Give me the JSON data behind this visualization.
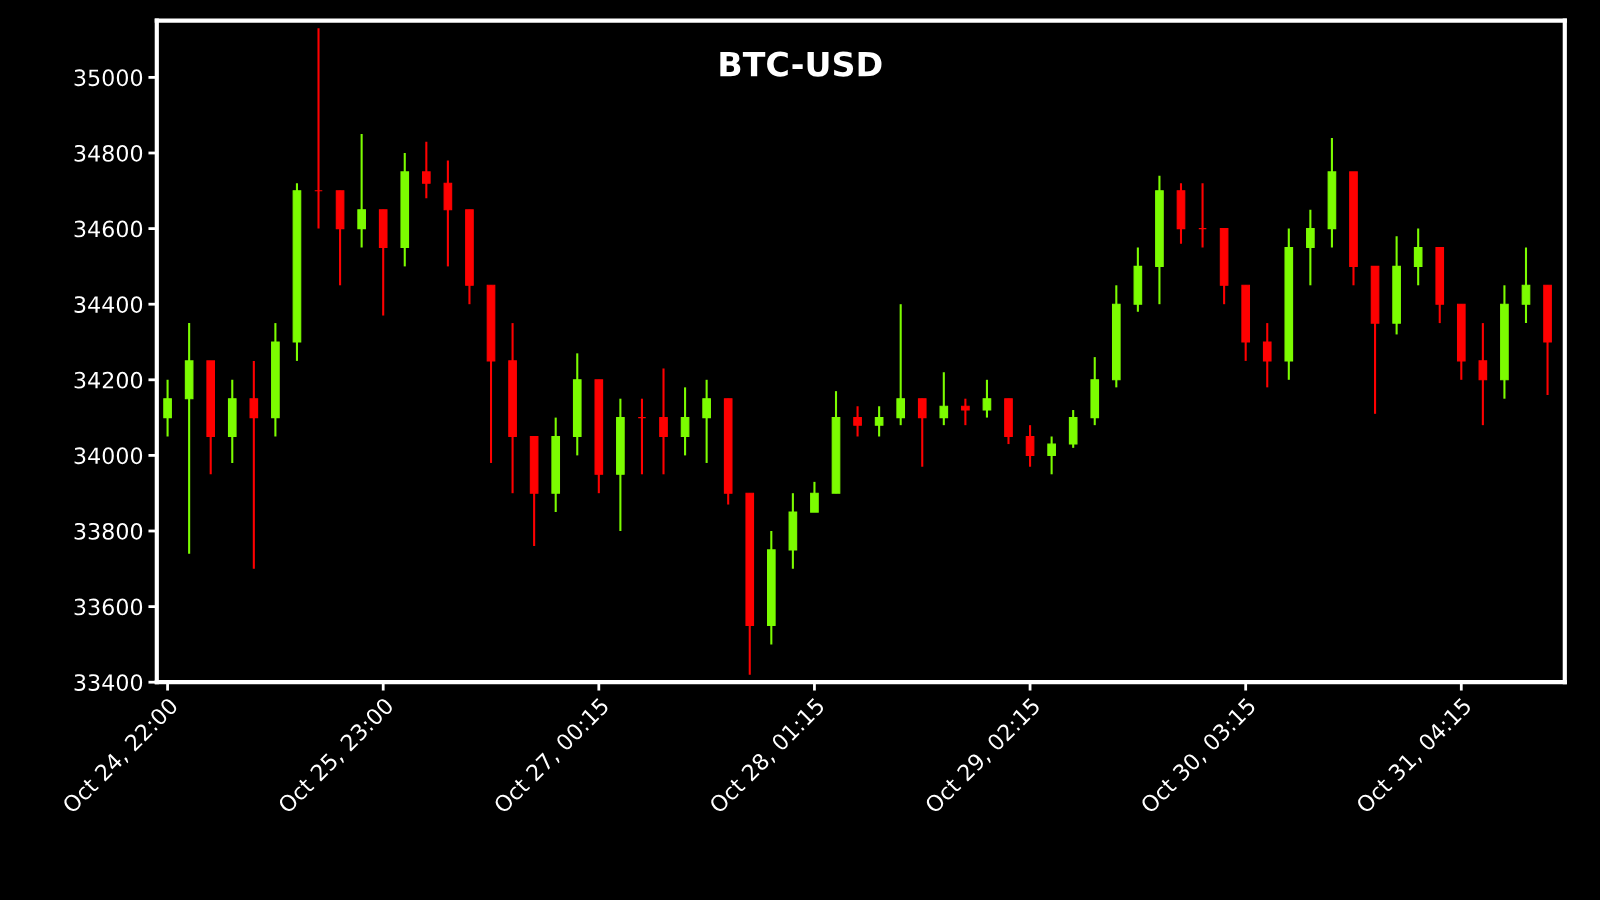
{
  "chart_data": {
    "type": "candlestick",
    "title": "BTC-USD",
    "categories": [
      "Oct 24, 22:00",
      null,
      null,
      null,
      null,
      null,
      null,
      null,
      null,
      null,
      "Oct 25, 23:00",
      null,
      null,
      null,
      null,
      null,
      null,
      null,
      null,
      null,
      "Oct 27, 00:15",
      null,
      null,
      null,
      null,
      null,
      null,
      null,
      null,
      null,
      "Oct 28, 01:15",
      null,
      null,
      null,
      null,
      null,
      null,
      null,
      null,
      null,
      "Oct 29, 02:15",
      null,
      null,
      null,
      null,
      null,
      null,
      null,
      null,
      null,
      "Oct 30, 03:15",
      null,
      null,
      null,
      null,
      null,
      null,
      null,
      null,
      null,
      "Oct 31, 04:15",
      null,
      null,
      null,
      null
    ],
    "ohlc": [
      [
        34100,
        34200,
        34050,
        34150
      ],
      [
        34150,
        34350,
        33740,
        34250
      ],
      [
        34250,
        34250,
        33950,
        34050
      ],
      [
        34050,
        34200,
        33980,
        34150
      ],
      [
        34150,
        34250,
        33700,
        34100
      ],
      [
        34100,
        34350,
        34050,
        34300
      ],
      [
        34300,
        34720,
        34250,
        34700
      ],
      [
        34700,
        35130,
        34600,
        34700
      ],
      [
        34700,
        34700,
        34450,
        34600
      ],
      [
        34600,
        34850,
        34550,
        34650
      ],
      [
        34650,
        34650,
        34370,
        34550
      ],
      [
        34550,
        34800,
        34500,
        34750
      ],
      [
        34750,
        34830,
        34680,
        34720
      ],
      [
        34720,
        34780,
        34500,
        34650
      ],
      [
        34650,
        34650,
        34400,
        34450
      ],
      [
        34450,
        34450,
        33980,
        34250
      ],
      [
        34250,
        34350,
        33900,
        34050
      ],
      [
        34050,
        34050,
        33760,
        33900
      ],
      [
        33900,
        34100,
        33850,
        34050
      ],
      [
        34050,
        34270,
        34000,
        34200
      ],
      [
        34200,
        34200,
        33900,
        33950
      ],
      [
        33950,
        34150,
        33800,
        34100
      ],
      [
        34100,
        34150,
        33950,
        34100
      ],
      [
        34100,
        34230,
        33950,
        34050
      ],
      [
        34050,
        34180,
        34000,
        34100
      ],
      [
        34100,
        34200,
        33980,
        34150
      ],
      [
        34150,
        34150,
        33870,
        33900
      ],
      [
        33900,
        33900,
        33420,
        33550
      ],
      [
        33550,
        33800,
        33500,
        33750
      ],
      [
        33750,
        33900,
        33700,
        33850
      ],
      [
        33850,
        33930,
        33850,
        33900
      ],
      [
        33900,
        34170,
        33900,
        34100
      ],
      [
        34100,
        34130,
        34050,
        34080
      ],
      [
        34080,
        34130,
        34050,
        34100
      ],
      [
        34100,
        34400,
        34080,
        34150
      ],
      [
        34150,
        34150,
        33970,
        34100
      ],
      [
        34100,
        34220,
        34080,
        34130
      ],
      [
        34130,
        34150,
        34080,
        34120
      ],
      [
        34120,
        34200,
        34100,
        34150
      ],
      [
        34150,
        34150,
        34030,
        34050
      ],
      [
        34050,
        34080,
        33970,
        34000
      ],
      [
        34000,
        34050,
        33950,
        34030
      ],
      [
        34030,
        34120,
        34020,
        34100
      ],
      [
        34100,
        34260,
        34080,
        34200
      ],
      [
        34200,
        34450,
        34180,
        34400
      ],
      [
        34400,
        34550,
        34380,
        34500
      ],
      [
        34500,
        34740,
        34400,
        34700
      ],
      [
        34700,
        34720,
        34560,
        34600
      ],
      [
        34600,
        34720,
        34550,
        34600
      ],
      [
        34600,
        34600,
        34400,
        34450
      ],
      [
        34450,
        34450,
        34250,
        34300
      ],
      [
        34300,
        34350,
        34180,
        34250
      ],
      [
        34250,
        34600,
        34200,
        34550
      ],
      [
        34550,
        34650,
        34450,
        34600
      ],
      [
        34600,
        34840,
        34550,
        34750
      ],
      [
        34750,
        34750,
        34450,
        34500
      ],
      [
        34500,
        34500,
        34110,
        34350
      ],
      [
        34350,
        34580,
        34320,
        34500
      ],
      [
        34500,
        34600,
        34450,
        34550
      ],
      [
        34550,
        34550,
        34350,
        34400
      ],
      [
        34400,
        34400,
        34200,
        34250
      ],
      [
        34250,
        34350,
        34080,
        34200
      ],
      [
        34200,
        34450,
        34150,
        34400
      ],
      [
        34400,
        34550,
        34350,
        34450
      ],
      [
        34450,
        34450,
        34160,
        34300
      ]
    ],
    "colors": [
      "#7cfc00",
      "#7cfc00",
      "#ff0000",
      "#7cfc00",
      "#ff0000",
      "#7cfc00",
      "#7cfc00",
      "#ff0000",
      "#ff0000",
      "#7cfc00",
      "#ff0000",
      "#7cfc00",
      "#ff0000",
      "#ff0000",
      "#ff0000",
      "#ff0000",
      "#ff0000",
      "#ff0000",
      "#7cfc00",
      "#7cfc00",
      "#ff0000",
      "#7cfc00",
      "#ff0000",
      "#ff0000",
      "#7cfc00",
      "#7cfc00",
      "#ff0000",
      "#ff0000",
      "#7cfc00",
      "#7cfc00",
      "#7cfc00",
      "#7cfc00",
      "#ff0000",
      "#7cfc00",
      "#7cfc00",
      "#ff0000",
      "#7cfc00",
      "#ff0000",
      "#7cfc00",
      "#ff0000",
      "#ff0000",
      "#7cfc00",
      "#7cfc00",
      "#7cfc00",
      "#7cfc00",
      "#7cfc00",
      "#7cfc00",
      "#ff0000",
      "#ff0000",
      "#ff0000",
      "#ff0000",
      "#ff0000",
      "#7cfc00",
      "#7cfc00",
      "#7cfc00",
      "#ff0000",
      "#ff0000",
      "#7cfc00",
      "#7cfc00",
      "#ff0000",
      "#ff0000",
      "#ff0000",
      "#7cfc00",
      "#7cfc00",
      "#ff0000"
    ],
    "ylim": [
      33400,
      35150
    ],
    "yticks": [
      33400,
      33600,
      33800,
      34000,
      34200,
      34400,
      34600,
      34800,
      35000
    ],
    "grid": false,
    "legend": false
  }
}
